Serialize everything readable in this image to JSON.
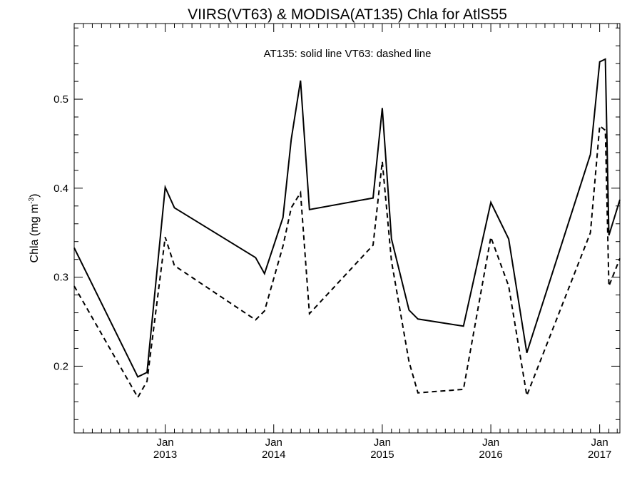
{
  "chart_data": {
    "type": "line",
    "title": "VIIRS(VT63) & MODISA(AT135)  Chla for AtlS55",
    "annotation": "AT135: solid line   VT63: dashed line",
    "xlabel": "",
    "ylabel_text": "Chla (mg m",
    "ylabel_sup": "-3",
    "ylabel_close": ")",
    "xlim": [
      "2012-03-01",
      "2017-03-10"
    ],
    "ylim": [
      0.125,
      0.585
    ],
    "x_ticks": [
      {
        "date": "2013-01-01",
        "month": "Jan",
        "year": "2013"
      },
      {
        "date": "2014-01-01",
        "month": "Jan",
        "year": "2014"
      },
      {
        "date": "2015-01-01",
        "month": "Jan",
        "year": "2015"
      },
      {
        "date": "2016-01-01",
        "month": "Jan",
        "year": "2016"
      },
      {
        "date": "2017-01-01",
        "month": "Jan",
        "year": "2017"
      }
    ],
    "y_ticks": [
      {
        "value": 0.2,
        "label": "0.2"
      },
      {
        "value": 0.3,
        "label": "0.3"
      },
      {
        "value": 0.4,
        "label": "0.4"
      },
      {
        "value": 0.5,
        "label": "0.5"
      }
    ],
    "grid": false,
    "series": [
      {
        "name": "AT135",
        "style": "solid",
        "color": "#000000",
        "x": [
          "2012-03-01",
          "2012-10-01",
          "2012-11-01",
          "2013-01-01",
          "2013-02-01",
          "2013-11-01",
          "2013-12-01",
          "2014-02-01",
          "2014-03-01",
          "2014-04-01",
          "2014-05-01",
          "2014-12-01",
          "2015-01-01",
          "2015-02-01",
          "2015-04-01",
          "2015-05-01",
          "2015-10-01",
          "2016-01-01",
          "2016-03-01",
          "2016-05-01",
          "2016-12-01",
          "2017-01-01",
          "2017-01-20",
          "2017-02-01",
          "2017-03-10"
        ],
        "y": [
          0.333,
          0.188,
          0.193,
          0.401,
          0.378,
          0.322,
          0.304,
          0.367,
          0.455,
          0.521,
          0.376,
          0.389,
          0.49,
          0.343,
          0.263,
          0.253,
          0.245,
          0.384,
          0.343,
          0.215,
          0.438,
          0.542,
          0.545,
          0.347,
          0.387
        ]
      },
      {
        "name": "VT63",
        "style": "dashed",
        "color": "#000000",
        "x": [
          "2012-03-01",
          "2012-10-01",
          "2012-11-01",
          "2013-01-01",
          "2013-02-01",
          "2013-11-01",
          "2013-12-01",
          "2014-02-01",
          "2014-03-01",
          "2014-04-01",
          "2014-05-01",
          "2014-12-01",
          "2015-01-01",
          "2015-02-01",
          "2015-04-01",
          "2015-05-01",
          "2015-10-01",
          "2016-01-01",
          "2016-03-01",
          "2016-05-01",
          "2016-12-01",
          "2017-01-01",
          "2017-01-20",
          "2017-02-01",
          "2017-03-10"
        ],
        "y": [
          0.29,
          0.165,
          0.183,
          0.345,
          0.313,
          0.252,
          0.262,
          0.335,
          0.378,
          0.395,
          0.259,
          0.336,
          0.43,
          0.318,
          0.205,
          0.17,
          0.174,
          0.345,
          0.29,
          0.167,
          0.35,
          0.47,
          0.465,
          0.29,
          0.321
        ]
      }
    ]
  }
}
